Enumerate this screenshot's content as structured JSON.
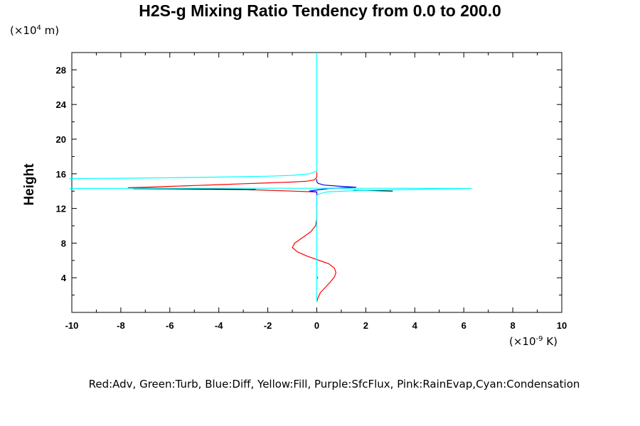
{
  "chart_data": {
    "type": "line",
    "title": "H2S-g Mixing Ratio Tendency from 0.0 to 200.0",
    "ylabel": "Height",
    "y_unit_prefix": "(×10",
    "y_unit_exp": "4",
    "y_unit_suffix": " m)",
    "x_unit_prefix": "(×10",
    "x_unit_exp": "-9",
    "x_unit_suffix": " K)",
    "xlim": [
      -10,
      10
    ],
    "ylim": [
      0,
      30
    ],
    "x_ticks": [
      -10,
      -8,
      -6,
      -4,
      -2,
      0,
      2,
      4,
      6,
      8,
      10
    ],
    "y_ticks": [
      4,
      8,
      12,
      16,
      20,
      24,
      28
    ],
    "grid": false,
    "legend_text": "Red:Adv, Green:Turb, Blue:Diff, Yellow:Fill, Purple:SfcFlux, Pink:RainEvap,Cyan:Condensation",
    "series": [
      {
        "color": "#ff0000",
        "points": [
          [
            0,
            1.2
          ],
          [
            0.05,
            1.7
          ],
          [
            0.15,
            2.3
          ],
          [
            0.35,
            2.9
          ],
          [
            0.55,
            3.5
          ],
          [
            0.72,
            4.1
          ],
          [
            0.78,
            4.6
          ],
          [
            0.72,
            5.1
          ],
          [
            0.5,
            5.6
          ],
          [
            0.2,
            5.9
          ],
          [
            0,
            6.1
          ],
          [
            -0.4,
            6.5
          ],
          [
            -0.8,
            7.0
          ],
          [
            -1.0,
            7.5
          ],
          [
            -0.9,
            8.0
          ],
          [
            -0.55,
            8.7
          ],
          [
            -0.25,
            9.3
          ],
          [
            -0.05,
            10.0
          ],
          [
            0,
            10.8
          ],
          [
            0,
            13.9
          ],
          [
            -1.0,
            14.0
          ],
          [
            -2.0,
            14.1
          ],
          [
            -3.0,
            14.2
          ],
          [
            -4.0,
            14.25
          ],
          [
            -5.0,
            14.3
          ],
          [
            -6.0,
            14.32
          ],
          [
            -7.0,
            14.35
          ],
          [
            -7.7,
            14.4
          ],
          [
            -7.0,
            14.45
          ],
          [
            -6.0,
            14.55
          ],
          [
            -5.0,
            14.65
          ],
          [
            -4.0,
            14.75
          ],
          [
            -3.0,
            14.85
          ],
          [
            -2.0,
            14.95
          ],
          [
            -1.0,
            15.05
          ],
          [
            -0.4,
            15.15
          ],
          [
            -0.1,
            15.3
          ],
          [
            0,
            15.6
          ],
          [
            0,
            16.2
          ]
        ]
      },
      {
        "color": "#0000ff",
        "points": [
          [
            0,
            13.6
          ],
          [
            0,
            13.9
          ],
          [
            -0.3,
            14.0
          ],
          [
            -0.1,
            14.1
          ],
          [
            0.5,
            14.3
          ],
          [
            1.2,
            14.4
          ],
          [
            1.6,
            14.45
          ],
          [
            1.0,
            14.55
          ],
          [
            0.3,
            14.7
          ],
          [
            0.05,
            14.9
          ],
          [
            0,
            15.1
          ],
          [
            0,
            15.4
          ]
        ]
      },
      {
        "color": "#000000",
        "points": [
          [
            -7.5,
            14.28
          ],
          [
            -6.0,
            14.26
          ],
          [
            -4.5,
            14.22
          ],
          [
            -3.5,
            14.2
          ],
          [
            -2.5,
            14.18
          ]
        ]
      },
      {
        "color": "#000000",
        "points": [
          [
            1.5,
            14.1
          ],
          [
            2.5,
            14.05
          ],
          [
            3.1,
            14.0
          ]
        ]
      },
      {
        "color": "#00cc00",
        "points": [
          [
            0,
            3.8
          ],
          [
            0.04,
            4.0
          ],
          [
            0,
            4.2
          ]
        ]
      },
      {
        "color": "#00ffff",
        "points": [
          [
            -10.1,
            15.45
          ],
          [
            -8.0,
            15.48
          ],
          [
            -6.0,
            15.55
          ],
          [
            -4.0,
            15.62
          ],
          [
            -2.0,
            15.72
          ],
          [
            -1.0,
            15.82
          ],
          [
            -0.3,
            16.0
          ],
          [
            0,
            16.3
          ],
          [
            0,
            30.0
          ]
        ]
      },
      {
        "color": "#00ffff",
        "points": [
          [
            0,
            1.2
          ],
          [
            0,
            13.5
          ],
          [
            0.1,
            13.7
          ],
          [
            0.4,
            13.9
          ],
          [
            1.5,
            14.05
          ],
          [
            3.0,
            14.15
          ],
          [
            5.0,
            14.25
          ],
          [
            6.3,
            14.3
          ],
          [
            5.0,
            14.32
          ],
          [
            3.0,
            14.33
          ],
          [
            0,
            14.33
          ],
          [
            -3.0,
            14.33
          ],
          [
            -6.0,
            14.32
          ],
          [
            -10.1,
            14.3
          ]
        ]
      }
    ]
  }
}
